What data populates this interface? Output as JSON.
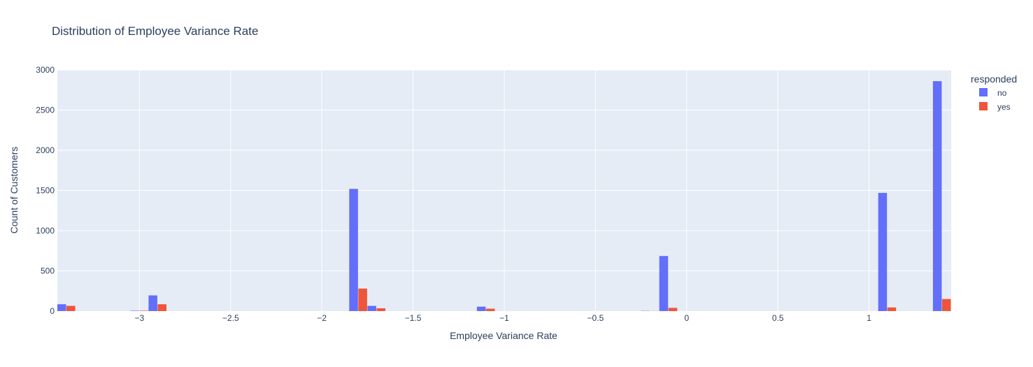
{
  "chart_data": {
    "type": "bar",
    "title": "Distribution of Employee Variance Rate",
    "xlabel": "Employee Variance Rate",
    "ylabel": "Count of Customers",
    "xlim": [
      -3.45,
      1.45
    ],
    "ylim": [
      0,
      3000
    ],
    "x_ticks": [
      -3,
      -2.5,
      -2,
      -1.5,
      -1,
      -0.5,
      0,
      0.5,
      1
    ],
    "x_tick_labels": [
      "−3",
      "−2.5",
      "−2",
      "−1.5",
      "−1",
      "−0.5",
      "0",
      "0.5",
      "1"
    ],
    "y_ticks": [
      0,
      500,
      1000,
      1500,
      2000,
      2500,
      3000
    ],
    "y_tick_labels": [
      "0",
      "500",
      "1000",
      "1500",
      "2000",
      "2500",
      "3000"
    ],
    "bin_width": 0.1,
    "legend_title": "responded",
    "legend_position": "top-right",
    "grid": true,
    "series": [
      {
        "name": "no",
        "color": "#636efa",
        "x": [
          -3.4,
          -3.0,
          -2.9,
          -1.8,
          -1.7,
          -1.1,
          -0.2,
          -0.1,
          1.1,
          1.4
        ],
        "values": [
          85,
          5,
          195,
          1520,
          65,
          55,
          3,
          685,
          1470,
          2860
        ]
      },
      {
        "name": "yes",
        "color": "#ef553b",
        "x": [
          -3.4,
          -3.0,
          -2.9,
          -1.8,
          -1.7,
          -1.1,
          -0.2,
          -0.1,
          1.1,
          1.4
        ],
        "values": [
          65,
          5,
          85,
          280,
          35,
          30,
          1,
          40,
          45,
          150
        ]
      }
    ]
  }
}
